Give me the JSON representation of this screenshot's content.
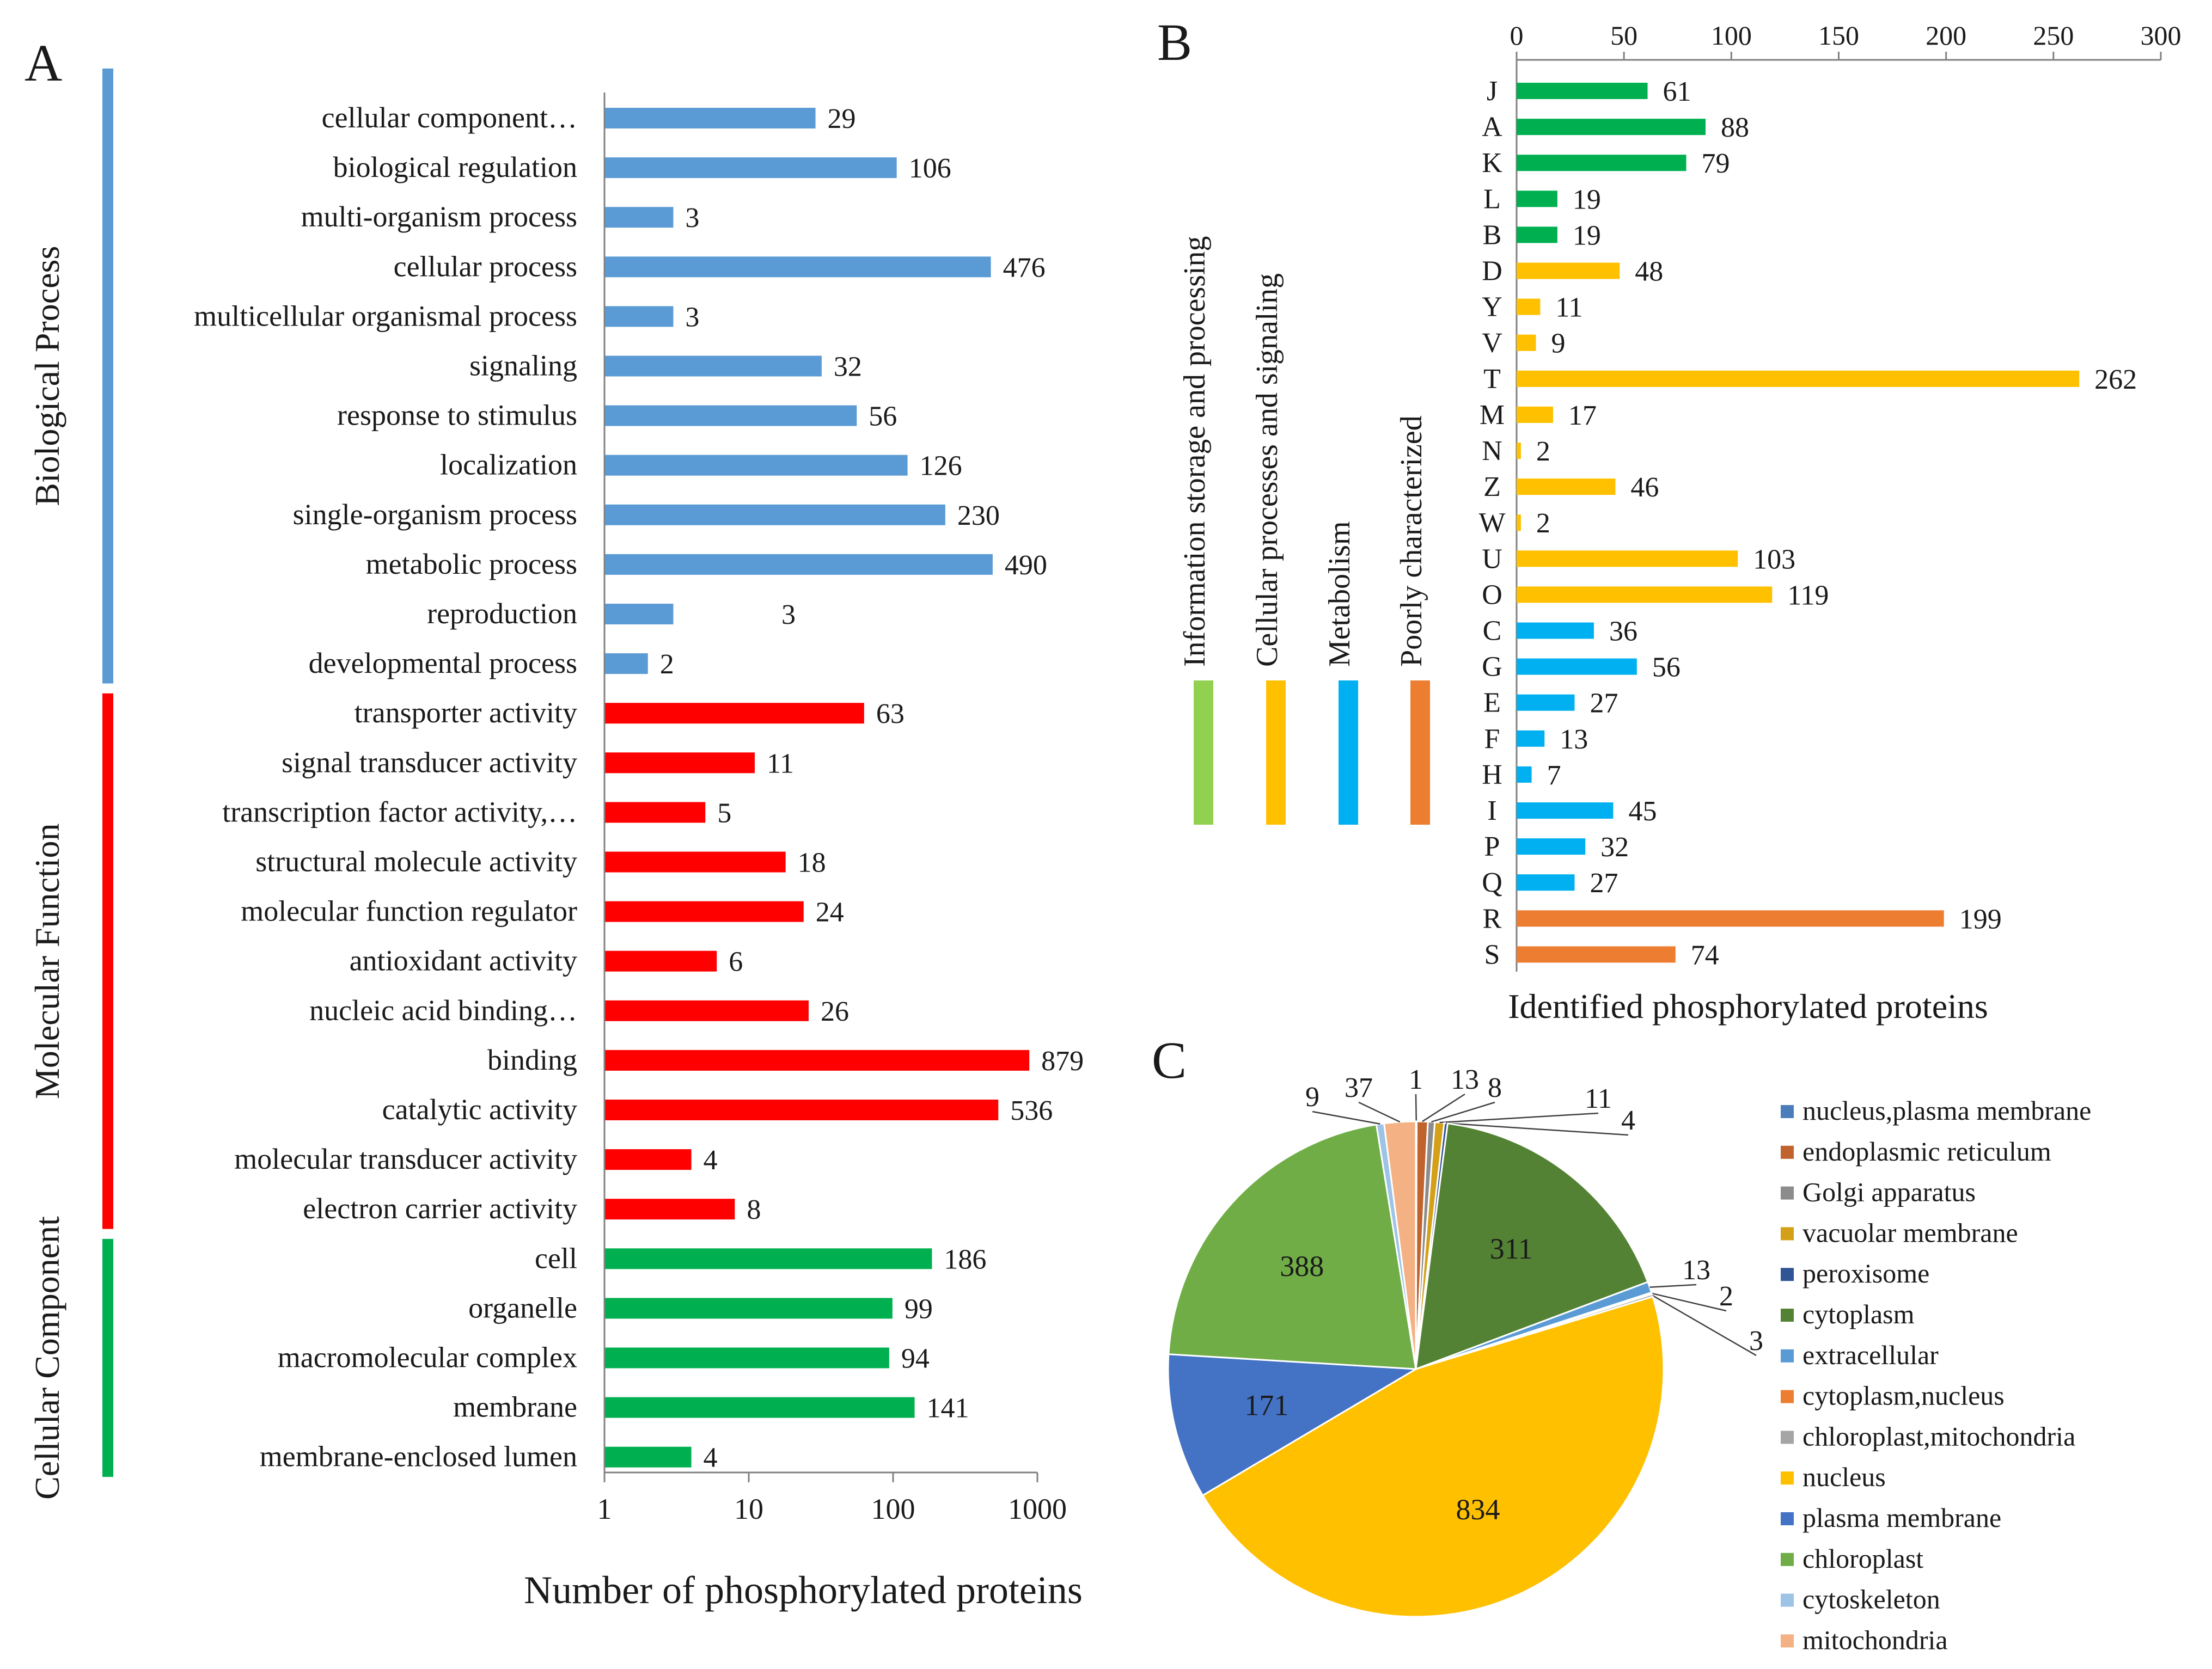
{
  "chart_data": [
    {
      "panel": "A",
      "type": "bar",
      "orientation": "horizontal",
      "xscale": "log",
      "xlim": [
        1,
        1000
      ],
      "xticks": [
        "1",
        "10",
        "100",
        "1000"
      ],
      "xlabel": "Number of phosphorylated proteins",
      "ylabel": "",
      "groups": [
        {
          "name": "Biological Process",
          "color": "#5B9BD5",
          "barColor": "#5B9BD5",
          "labelColor": "#0070C0",
          "categories": [
            "cellular component…",
            "biological regulation",
            "multi-organism process",
            "cellular process",
            "multicellular organismal process",
            "signaling",
            "response to stimulus",
            "localization",
            "single-organism process",
            "metabolic process",
            "reproduction",
            "developmental process"
          ],
          "values": [
            29,
            106,
            3,
            476,
            3,
            32,
            56,
            126,
            230,
            490,
            3,
            2
          ]
        },
        {
          "name": "Molecular Function",
          "color": "#FF0000",
          "barColor": "#FF0000",
          "labelColor": "#FF0000",
          "categories": [
            "transporter activity",
            "signal transducer activity",
            "transcription factor activity,…",
            "structural molecule activity",
            "molecular function regulator",
            "antioxidant activity",
            "nucleic acid binding…",
            "binding",
            "catalytic activity",
            "molecular transducer activity",
            "electron carrier activity"
          ],
          "values": [
            63,
            11,
            5,
            18,
            24,
            6,
            26,
            879,
            536,
            4,
            8
          ]
        },
        {
          "name": "Cellular Component",
          "color": "#00B050",
          "barColor": "#00B050",
          "labelColor": "#00B050",
          "categories": [
            "cell",
            "organelle",
            "macromolecular complex",
            "membrane",
            "membrane-enclosed lumen"
          ],
          "values": [
            186,
            99,
            94,
            141,
            4
          ]
        }
      ]
    },
    {
      "panel": "B",
      "type": "bar",
      "orientation": "horizontal",
      "xlim": [
        0,
        300
      ],
      "xticks": [
        "0",
        "50",
        "100",
        "150",
        "200",
        "250",
        "300"
      ],
      "xaxis_position": "top",
      "xlabel": "Identified phosphorylated proteins",
      "categories": [
        "J",
        "A",
        "K",
        "L",
        "B",
        "D",
        "Y",
        "V",
        "T",
        "M",
        "N",
        "Z",
        "W",
        "U",
        "O",
        "C",
        "G",
        "E",
        "F",
        "H",
        "I",
        "P",
        "Q",
        "R",
        "S"
      ],
      "values": [
        61,
        88,
        79,
        19,
        19,
        48,
        11,
        9,
        262,
        17,
        2,
        46,
        2,
        103,
        119,
        36,
        56,
        27,
        13,
        7,
        45,
        32,
        27,
        199,
        74
      ],
      "class_index": [
        0,
        0,
        0,
        0,
        0,
        1,
        1,
        1,
        1,
        1,
        1,
        1,
        1,
        1,
        1,
        2,
        2,
        2,
        2,
        2,
        2,
        2,
        2,
        3,
        3
      ],
      "classes": [
        {
          "name": "Information storage and processing",
          "barColor": "#00B050",
          "markerColor": "#92D050"
        },
        {
          "name": "Cellular processes and signaling",
          "barColor": "#FFC000",
          "markerColor": "#FFC000"
        },
        {
          "name": "Metabolism",
          "barColor": "#00B0F0",
          "markerColor": "#00B0F0"
        },
        {
          "name": "Poorly characterized",
          "barColor": "#ED7D31",
          "markerColor": "#ED7D31"
        }
      ]
    },
    {
      "panel": "C",
      "type": "pie",
      "legend_position": "right",
      "slices": [
        {
          "label": "nucleus,plasma membrane",
          "value": 1,
          "color": "#4A7EBB"
        },
        {
          "label": "endoplasmic reticulum",
          "value": 13,
          "color": "#C0632D"
        },
        {
          "label": "Golgi apparatus",
          "value": 8,
          "color": "#8C8C8C"
        },
        {
          "label": "vacuolar membrane",
          "value": 11,
          "color": "#D4A017"
        },
        {
          "label": "peroxisome",
          "value": 4,
          "color": "#2F5597"
        },
        {
          "label": "cytoplasm",
          "value": 311,
          "color": "#548235"
        },
        {
          "label": "extracellular",
          "value": 13,
          "color": "#5B9BD5"
        },
        {
          "label": "cytoplasm,nucleus",
          "value": 2,
          "color": "#ED7D31"
        },
        {
          "label": "chloroplast,mitochondria",
          "value": 3,
          "color": "#A5A5A5"
        },
        {
          "label": "nucleus",
          "value": 834,
          "color": "#FFC000"
        },
        {
          "label": "plasma membrane",
          "value": 171,
          "color": "#4472C4"
        },
        {
          "label": "chloroplast",
          "value": 388,
          "color": "#70AD47"
        },
        {
          "label": "cytoskeleton",
          "value": 9,
          "color": "#9DC3E6"
        },
        {
          "label": "mitochondria",
          "value": 37,
          "color": "#F4B183"
        }
      ]
    }
  ],
  "panel_letters": {
    "a": "A",
    "b": "B",
    "c": "C"
  }
}
